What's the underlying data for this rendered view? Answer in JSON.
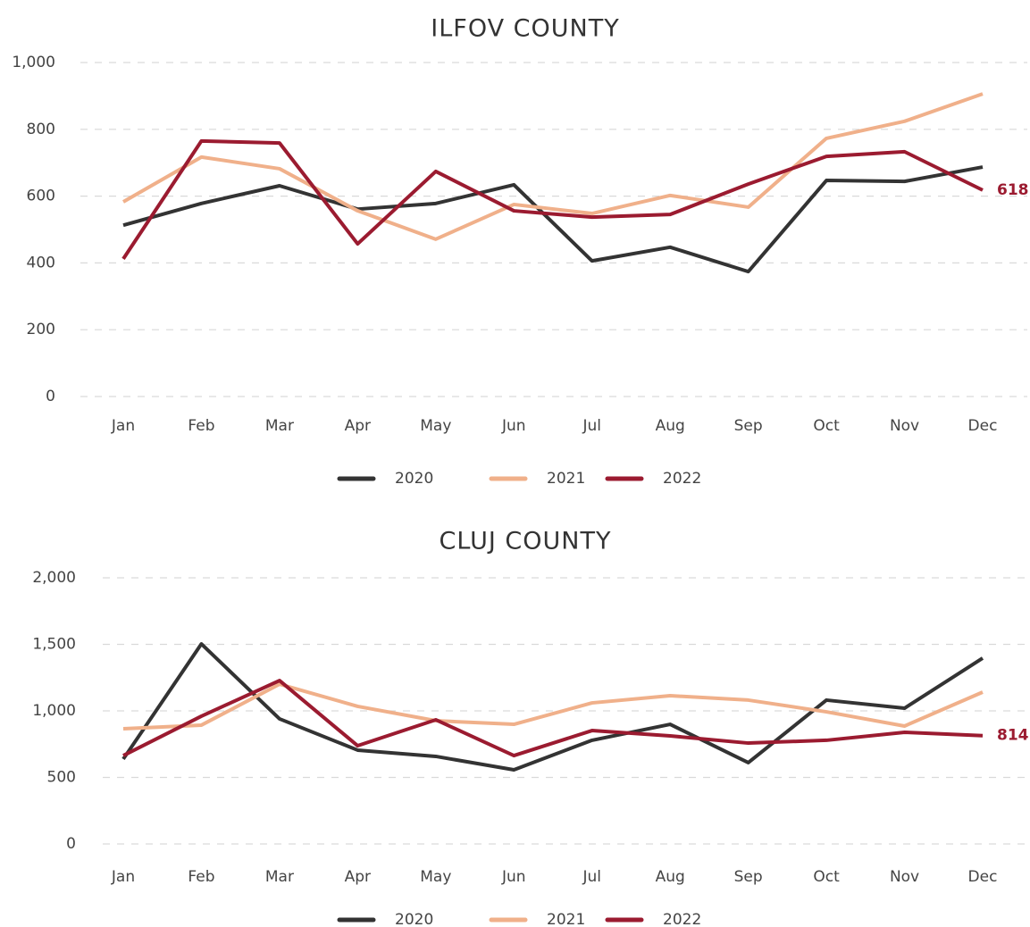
{
  "chart_data": [
    {
      "type": "line",
      "title": "ILFOV COUNTY",
      "categories": [
        "Jan",
        "Feb",
        "Mar",
        "Apr",
        "May",
        "Jun",
        "Jul",
        "Aug",
        "Sep",
        "Oct",
        "Nov",
        "Dec"
      ],
      "series": [
        {
          "name": "2020",
          "color": "#333333",
          "values": [
            513,
            578,
            631,
            561,
            578,
            634,
            406,
            447,
            374,
            647,
            644,
            687
          ]
        },
        {
          "name": "2021",
          "color": "#f0b08a",
          "values": [
            583,
            717,
            682,
            556,
            471,
            575,
            548,
            602,
            567,
            773,
            824,
            906
          ]
        },
        {
          "name": "2022",
          "color": "#9b1b30",
          "values": [
            412,
            765,
            759,
            457,
            674,
            556,
            537,
            545,
            636,
            719,
            733,
            618
          ]
        }
      ],
      "ylim": [
        0,
        1000
      ],
      "yticks": [
        0,
        200,
        400,
        600,
        800,
        {
          "value": 1000,
          "label": "1,000"
        }
      ],
      "grid": true,
      "legend": "bottom"
    },
    {
      "type": "line",
      "title": "CLUJ COUNTY",
      "categories": [
        "Jan",
        "Feb",
        "Mar",
        "Apr",
        "May",
        "Jun",
        "Jul",
        "Aug",
        "Sep",
        "Oct",
        "Nov",
        "Dec"
      ],
      "series": [
        {
          "name": "2020",
          "color": "#333333",
          "values": [
            638,
            1503,
            940,
            705,
            658,
            557,
            779,
            899,
            611,
            1081,
            1020,
            1396
          ]
        },
        {
          "name": "2021",
          "color": "#f0b08a",
          "values": [
            866,
            893,
            1201,
            1034,
            926,
            899,
            1060,
            1114,
            1081,
            993,
            886,
            1141
          ]
        },
        {
          "name": "2022",
          "color": "#9b1b30",
          "values": [
            664,
            960,
            1228,
            738,
            933,
            664,
            852,
            812,
            758,
            779,
            839,
            814
          ]
        }
      ],
      "ylim": [
        0,
        2000
      ],
      "yticks": [
        0,
        500,
        {
          "value": 1000,
          "label": "1,000"
        },
        {
          "value": 1500,
          "label": "1,500"
        },
        {
          "value": 2000,
          "label": "2,000"
        }
      ],
      "grid": true,
      "legend": "bottom"
    }
  ]
}
